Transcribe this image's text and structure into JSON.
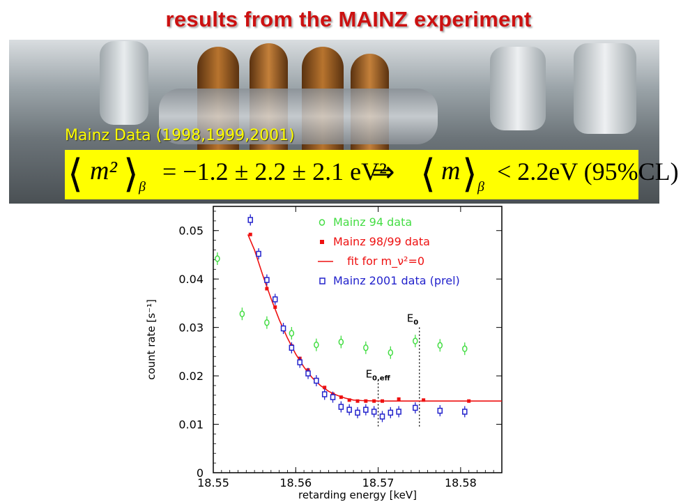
{
  "slide": {
    "title": "results from the MAINZ experiment",
    "photo_caption": "Mainz Data (1998,1999,2001)",
    "formula": {
      "lhs": "m²",
      "lhs_sub": "β",
      "eq": "= −1.2 ± 2.2 ± 2.1  eV²",
      "implies": "⇒",
      "rhs": "m",
      "rhs_sub": "β",
      "bound": "< 2.2eV (95%CL)"
    }
  },
  "colors": {
    "title": "#cc1111",
    "highlight": "#ffff00",
    "green": "#44dd44",
    "red": "#ee1111",
    "blue": "#2222cc"
  },
  "chart_data": {
    "type": "scatter",
    "xlabel": "retarding energy  [keV]",
    "ylabel": "count rate  [s⁻¹]",
    "xlim": [
      18.55,
      18.585
    ],
    "ylim": [
      0,
      0.055
    ],
    "xticks": [
      "18.55",
      "18.56",
      "18.57",
      "18.58"
    ],
    "yticks": [
      "0",
      "0.01",
      "0.02",
      "0.03",
      "0.04",
      "0.05"
    ],
    "legend_position": "top-right",
    "series": [
      {
        "name": "Mainz 94 data",
        "marker": "open-circle",
        "color": "#44dd44",
        "x": [
          18.5505,
          18.5535,
          18.5565,
          18.5595,
          18.5625,
          18.5655,
          18.5685,
          18.5715,
          18.5745,
          18.5775,
          18.5805
        ],
        "y": [
          0.0442,
          0.0328,
          0.031,
          0.0288,
          0.0264,
          0.027,
          0.0258,
          0.0248,
          0.0272,
          0.0263,
          0.0256
        ]
      },
      {
        "name": "Mainz 98/99 data",
        "marker": "filled-square",
        "color": "#ee1111",
        "x": [
          18.5545,
          18.5555,
          18.5565,
          18.5575,
          18.5585,
          18.5595,
          18.5605,
          18.5615,
          18.5625,
          18.5635,
          18.5645,
          18.5655,
          18.5665,
          18.5675,
          18.5685,
          18.5695,
          18.5705,
          18.5725,
          18.5755,
          18.581
        ],
        "y": [
          0.0492,
          0.045,
          0.038,
          0.0342,
          0.03,
          0.0262,
          0.0236,
          0.0212,
          0.019,
          0.0176,
          0.0162,
          0.0156,
          0.015,
          0.0148,
          0.0148,
          0.0148,
          0.0148,
          0.0152,
          0.015,
          0.0148
        ]
      },
      {
        "name": "fit for m_ν²=0",
        "marker": "line",
        "color": "#ee1111",
        "x": [
          18.5542,
          18.555,
          18.556,
          18.557,
          18.558,
          18.559,
          18.56,
          18.561,
          18.562,
          18.563,
          18.564,
          18.565,
          18.566,
          18.567,
          18.568,
          18.57,
          18.585
        ],
        "y": [
          0.0492,
          0.046,
          0.0408,
          0.036,
          0.0316,
          0.0278,
          0.0245,
          0.0218,
          0.0196,
          0.018,
          0.0168,
          0.016,
          0.0154,
          0.015,
          0.0149,
          0.0148,
          0.0148
        ]
      },
      {
        "name": "Mainz 2001 data (prel)",
        "marker": "open-square",
        "color": "#2222cc",
        "x": [
          18.5545,
          18.5555,
          18.5565,
          18.5575,
          18.5585,
          18.5595,
          18.5605,
          18.5615,
          18.5625,
          18.5635,
          18.5645,
          18.5655,
          18.5665,
          18.5675,
          18.5685,
          18.5695,
          18.5705,
          18.5715,
          18.5725,
          18.5745,
          18.5775,
          18.5805
        ],
        "y": [
          0.0522,
          0.0452,
          0.0398,
          0.0358,
          0.0298,
          0.0258,
          0.0228,
          0.0205,
          0.019,
          0.0162,
          0.0156,
          0.0136,
          0.013,
          0.0124,
          0.013,
          0.0126,
          0.0116,
          0.0124,
          0.0126,
          0.0134,
          0.0128,
          0.0126
        ]
      }
    ],
    "markers": [
      {
        "label": "E",
        "sub": "0,eff",
        "x": 18.57
      },
      {
        "label": "E",
        "sub": "0",
        "x": 18.575
      }
    ]
  }
}
